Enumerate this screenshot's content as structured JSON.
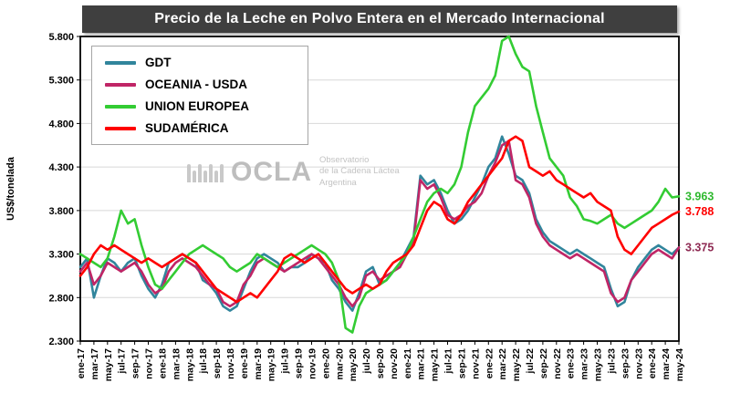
{
  "title": "Precio de la Leche en Polvo Entera en el Mercado Internacional",
  "watermark": {
    "name": "OCLA",
    "sub1": "Observatorio",
    "sub2": "de la Cadena Láctea",
    "sub3": "Argentina"
  },
  "legend": {
    "items": [
      {
        "label": "GDT"
      },
      {
        "label": "OCEANIA - USDA"
      },
      {
        "label": "UNION EUROPEA"
      },
      {
        "label": "SUDAMÉRICA"
      }
    ]
  },
  "chart_data": {
    "type": "line",
    "title": "Precio de la Leche en Polvo Entera en el Mercado Internacional",
    "ylabel": "US$/tonelada",
    "ylim": [
      2300,
      5800
    ],
    "y_tick_step": 500,
    "y_tick_labels": [
      "2.300",
      "2.800",
      "3.300",
      "3.800",
      "4.300",
      "4.800",
      "5.300",
      "5.800"
    ],
    "grid": "horizontal",
    "legend_position": "top-left",
    "n_points": 89,
    "label_every": 2,
    "x_labels": [
      "ene-17",
      "mar-17",
      "may-17",
      "jul-17",
      "sep-17",
      "nov-17",
      "ene-18",
      "mar-18",
      "may-18",
      "jul-18",
      "sep-18",
      "nov-18",
      "ene-19",
      "mar-19",
      "may-19",
      "jul-19",
      "sep-19",
      "nov-19",
      "ene-20",
      "mar-20",
      "may-20",
      "jul-20",
      "sep-20",
      "nov-20",
      "ene-21",
      "mar-21",
      "may-21",
      "jul-21",
      "sep-21",
      "nov-21",
      "ene-22",
      "mar-22",
      "may-22",
      "jul-22",
      "sep-22",
      "nov-22",
      "ene-23",
      "mar-23",
      "may-23",
      "jul-23",
      "sep-23",
      "nov-23",
      "ene-24",
      "mar-24",
      "may-24"
    ],
    "series": [
      {
        "name": "GDT",
        "key": "gdt",
        "color": "#31859C",
        "values": [
          3150,
          3250,
          2800,
          3050,
          3250,
          3200,
          3100,
          3200,
          3250,
          3050,
          2900,
          2800,
          2950,
          3200,
          3250,
          3300,
          3250,
          3200,
          3000,
          2950,
          2850,
          2700,
          2650,
          2700,
          2900,
          3100,
          3250,
          3300,
          3250,
          3200,
          3100,
          3150,
          3150,
          3200,
          3300,
          3250,
          3200,
          3000,
          2900,
          2750,
          2650,
          2850,
          3100,
          3150,
          2950,
          3000,
          3100,
          3200,
          3350,
          3500,
          4200,
          4100,
          4150,
          4000,
          3800,
          3650,
          3700,
          3800,
          3950,
          4100,
          4300,
          4400,
          4650,
          4450,
          4200,
          4150,
          4000,
          3700,
          3550,
          3450,
          3400,
          3350,
          3300,
          3350,
          3300,
          3250,
          3200,
          3150,
          2900,
          2700,
          2750,
          3000,
          3150,
          3250,
          3350,
          3400,
          3350,
          3300,
          3375
        ]
      },
      {
        "name": "OCEANIA - USDA",
        "key": "oceania-usda",
        "color": "#C02566",
        "values": [
          3100,
          3200,
          2950,
          3050,
          3200,
          3150,
          3100,
          3150,
          3200,
          3100,
          2950,
          2850,
          2900,
          3100,
          3200,
          3250,
          3200,
          3150,
          3050,
          2950,
          2900,
          2750,
          2700,
          2750,
          2950,
          3050,
          3200,
          3250,
          3200,
          3150,
          3100,
          3150,
          3200,
          3250,
          3300,
          3250,
          3150,
          3050,
          2950,
          2800,
          2700,
          2800,
          3050,
          3100,
          3000,
          3050,
          3100,
          3150,
          3300,
          3450,
          4150,
          4050,
          4100,
          3950,
          3750,
          3700,
          3750,
          3850,
          3900,
          4000,
          4200,
          4350,
          4550,
          4600,
          4150,
          4100,
          3950,
          3650,
          3500,
          3400,
          3350,
          3300,
          3250,
          3300,
          3250,
          3200,
          3150,
          3100,
          2850,
          2750,
          2800,
          3000,
          3100,
          3200,
          3300,
          3350,
          3300,
          3250,
          3375
        ]
      },
      {
        "name": "UNION EUROPEA",
        "key": "union-europea",
        "color": "#33CC33",
        "values": [
          3300,
          3250,
          3200,
          3150,
          3250,
          3500,
          3800,
          3650,
          3700,
          3400,
          3150,
          2950,
          2900,
          3000,
          3100,
          3200,
          3300,
          3350,
          3400,
          3350,
          3300,
          3250,
          3150,
          3100,
          3150,
          3200,
          3300,
          3250,
          3200,
          3150,
          3200,
          3250,
          3300,
          3350,
          3400,
          3350,
          3300,
          3200,
          3000,
          2450,
          2400,
          2700,
          2850,
          2900,
          2950,
          3000,
          3100,
          3200,
          3300,
          3500,
          3700,
          3900,
          4000,
          4050,
          4000,
          4100,
          4300,
          4700,
          5000,
          5100,
          5200,
          5350,
          5750,
          5800,
          5600,
          5450,
          5400,
          5000,
          4700,
          4400,
          4300,
          4200,
          3950,
          3850,
          3700,
          3680,
          3650,
          3700,
          3750,
          3650,
          3600,
          3650,
          3700,
          3750,
          3800,
          3900,
          4050,
          3950,
          3963
        ]
      },
      {
        "name": "SUDAMÉRICA",
        "key": "sudamerica",
        "color": "#FF0000",
        "values": [
          3050,
          3150,
          3300,
          3400,
          3350,
          3400,
          3350,
          3300,
          3250,
          3200,
          3250,
          3200,
          3150,
          3200,
          3250,
          3300,
          3250,
          3200,
          3100,
          3000,
          2900,
          2850,
          2800,
          2750,
          2800,
          2850,
          2800,
          2900,
          3000,
          3100,
          3250,
          3300,
          3250,
          3200,
          3250,
          3300,
          3200,
          3100,
          3000,
          2900,
          2850,
          2900,
          2950,
          2900,
          2950,
          3100,
          3200,
          3250,
          3300,
          3400,
          3600,
          3800,
          3900,
          3850,
          3700,
          3650,
          3750,
          3900,
          4000,
          4100,
          4200,
          4300,
          4400,
          4600,
          4650,
          4600,
          4300,
          4250,
          4200,
          4250,
          4150,
          4100,
          4050,
          4000,
          3950,
          4000,
          3900,
          3850,
          3800,
          3500,
          3350,
          3300,
          3400,
          3500,
          3600,
          3650,
          3700,
          3750,
          3788
        ]
      }
    ],
    "end_labels": [
      {
        "label": "3.963",
        "value": 3963,
        "color": "#2EB82E"
      },
      {
        "label": "3.788",
        "value": 3788,
        "color": "#FF0000"
      },
      {
        "label": "3.375",
        "value": 3375,
        "color": "#8E2A53"
      }
    ]
  }
}
